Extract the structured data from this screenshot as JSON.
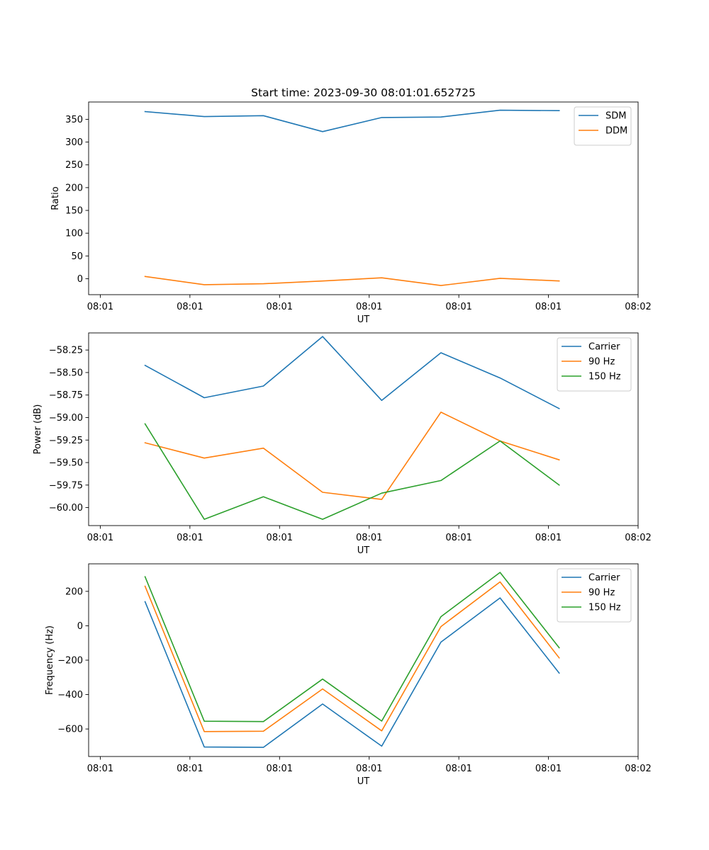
{
  "chart_data": [
    {
      "type": "line",
      "title": "Start time: 2023-09-30 08:01:01.652725",
      "xlabel": "UT",
      "ylabel": "Ratio",
      "x": [
        0.5,
        1.16,
        1.82,
        2.48,
        3.14,
        3.8,
        4.46,
        5.12
      ],
      "xlim": [
        -0.13,
        6.0
      ],
      "x_ticks": [
        0,
        1,
        2,
        3,
        4,
        5,
        6
      ],
      "x_tick_labels": [
        "08:01",
        "08:01",
        "08:01",
        "08:01",
        "08:01",
        "08:01",
        "08:02"
      ],
      "ylim": [
        -35,
        388
      ],
      "y_ticks": [
        0,
        50,
        100,
        150,
        200,
        250,
        300,
        350
      ],
      "y_tick_labels": [
        "0",
        "50",
        "100",
        "150",
        "200",
        "250",
        "300",
        "350"
      ],
      "legend_position": "top-right",
      "grid": false,
      "series": [
        {
          "name": "SDM",
          "color": "#1f77b4",
          "values": [
            367,
            356,
            358,
            323,
            354,
            355,
            370,
            369
          ]
        },
        {
          "name": "DDM",
          "color": "#ff7f0e",
          "values": [
            5,
            -13,
            -11,
            -5,
            2,
            -15,
            1,
            -5
          ]
        }
      ]
    },
    {
      "type": "line",
      "title": "",
      "xlabel": "UT",
      "ylabel": "Power (dB)",
      "x": [
        0.5,
        1.16,
        1.82,
        2.48,
        3.14,
        3.8,
        4.46,
        5.12
      ],
      "xlim": [
        -0.13,
        6.0
      ],
      "x_ticks": [
        0,
        1,
        2,
        3,
        4,
        5,
        6
      ],
      "x_tick_labels": [
        "08:01",
        "08:01",
        "08:01",
        "08:01",
        "08:01",
        "08:01",
        "08:02"
      ],
      "ylim": [
        -60.2,
        -58.06
      ],
      "y_ticks": [
        -60.0,
        -59.75,
        -59.5,
        -59.25,
        -59.0,
        -58.75,
        -58.5,
        -58.25
      ],
      "y_tick_labels": [
        "−60.00",
        "−59.75",
        "−59.50",
        "−59.25",
        "−59.00",
        "−58.75",
        "−58.50",
        "−58.25"
      ],
      "legend_position": "top-right",
      "grid": false,
      "series": [
        {
          "name": "Carrier",
          "color": "#1f77b4",
          "values": [
            -58.42,
            -58.78,
            -58.65,
            -58.1,
            -58.81,
            -58.28,
            -58.56,
            -58.9
          ]
        },
        {
          "name": "90 Hz",
          "color": "#ff7f0e",
          "values": [
            -59.28,
            -59.45,
            -59.34,
            -59.83,
            -59.91,
            -58.94,
            -59.26,
            -59.47
          ]
        },
        {
          "name": "150 Hz",
          "color": "#2ca02c",
          "values": [
            -59.07,
            -60.13,
            -59.88,
            -60.13,
            -59.84,
            -59.7,
            -59.26,
            -59.75
          ]
        }
      ]
    },
    {
      "type": "line",
      "title": "",
      "xlabel": "UT",
      "ylabel": "Frequency (Hz)",
      "x": [
        0.5,
        1.16,
        1.82,
        2.48,
        3.14,
        3.8,
        4.46,
        5.12
      ],
      "xlim": [
        -0.13,
        6.0
      ],
      "x_ticks": [
        0,
        1,
        2,
        3,
        4,
        5,
        6
      ],
      "x_tick_labels": [
        "08:01",
        "08:01",
        "08:01",
        "08:01",
        "08:01",
        "08:01",
        "08:02"
      ],
      "ylim": [
        -760,
        360
      ],
      "y_ticks": [
        -600,
        -400,
        -200,
        0,
        200
      ],
      "y_tick_labels": [
        "−600",
        "−400",
        "−200",
        "0",
        "200"
      ],
      "legend_position": "top-right",
      "grid": false,
      "series": [
        {
          "name": "Carrier",
          "color": "#1f77b4",
          "values": [
            140,
            -705,
            -707,
            -455,
            -700,
            -95,
            162,
            -275
          ]
        },
        {
          "name": "90 Hz",
          "color": "#ff7f0e",
          "values": [
            230,
            -615,
            -613,
            -367,
            -611,
            -5,
            255,
            -187
          ]
        },
        {
          "name": "150 Hz",
          "color": "#2ca02c",
          "values": [
            285,
            -555,
            -557,
            -310,
            -554,
            53,
            310,
            -128
          ]
        }
      ]
    }
  ]
}
